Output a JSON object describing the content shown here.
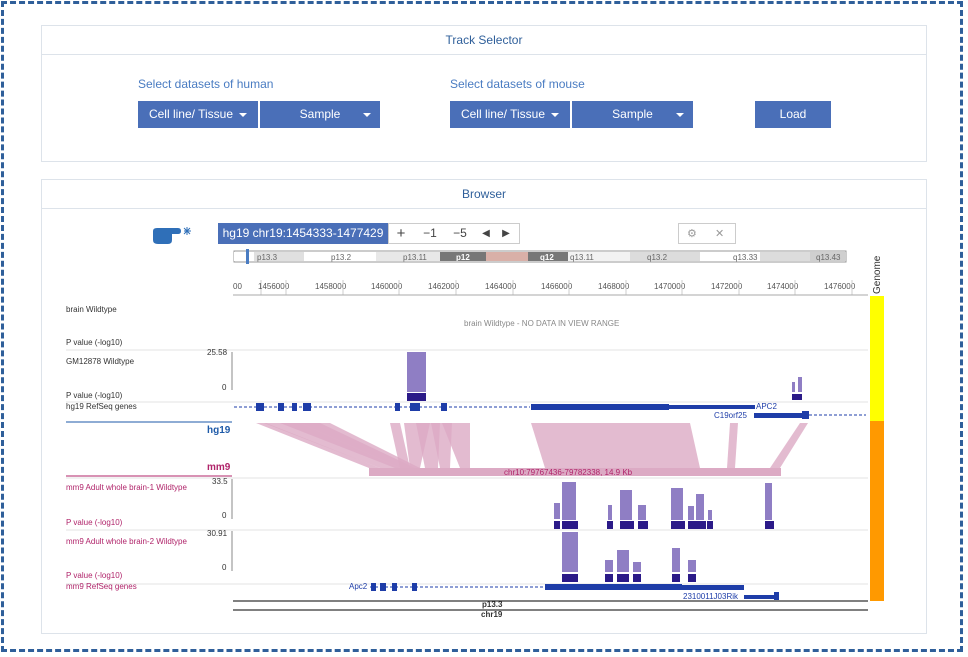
{
  "track_selector": {
    "title": "Track Selector",
    "human_label": "Select datasets of human",
    "mouse_label": "Select datasets of mouse",
    "human_cell_btn": "Cell line/ Tissue",
    "human_sample_btn": "Sample",
    "mouse_cell_btn": "Cell line/ Tissue",
    "mouse_sample_btn": "Sample",
    "load_btn": "Load"
  },
  "browser": {
    "title": "Browser",
    "coordinate": "hg19 chr19:1454333-1477429",
    "nav": {
      "plus": "+",
      "minus1": "−1",
      "minus5": "−5",
      "left": "◀",
      "right": "▶"
    },
    "settings_icons": {
      "gear": "⚙",
      "close": "✕"
    },
    "cytobands": [
      "p13.3",
      "p13.2",
      "p13.11",
      "p12",
      "q12",
      "q13.11",
      "q13.2",
      "q13.33",
      "q13.43"
    ],
    "ruler_ticks": [
      "00",
      "1456000",
      "1458000",
      "1460000",
      "1462000",
      "1464000",
      "1466000",
      "1468000",
      "1470000",
      "1472000",
      "1474000",
      "1476000"
    ],
    "genome_label": "Genome",
    "tracks": {
      "brain_wt": "brain Wildtype",
      "brain_nodata": "brain Wildtype - NO DATA IN VIEW RANGE",
      "pvalue1": "P value (-log10)",
      "gm12878": "GM12878 Wildtype",
      "gm_max": "25.58",
      "gm_zero": "0",
      "pvalue2": "P value (-log10)",
      "hg19_refseq": "hg19 RefSeq genes",
      "gene_apc2": "APC2",
      "gene_c19orf25": "C19orf25",
      "hg19": "hg19",
      "mm9": "mm9",
      "mm9_region": "chr10:79767436-79782338, 14.9 Kb",
      "mm9_brain1": "mm9 Adult whole brain-1 Wildtype",
      "mm9_b1_max": "33.5",
      "mm9_b1_zero": "0",
      "pvalue3": "P value (-log10)",
      "mm9_brain2": "mm9 Adult whole brain-2 Wildtype",
      "mm9_b2_max": "30.91",
      "mm9_b2_zero": "0",
      "pvalue4": "P value (-log10)",
      "mm9_refseq": "mm9 RefSeq genes",
      "gene_apc2_mm": "Apc2",
      "gene_2310011": "2310011J03Rik",
      "band_p133": "p13.3",
      "chr19": "chr19"
    }
  },
  "colors": {
    "accent": "#4a6fb8",
    "title": "#2f5f9a",
    "gene": "#1e3da8",
    "peak": "#8f7ec4",
    "peak_dark": "#2b1a88",
    "synteny": "#dcaac4",
    "human_bar": "#ffff00",
    "mouse_bar": "#ff9900",
    "mm9_text": "#b0246a"
  }
}
